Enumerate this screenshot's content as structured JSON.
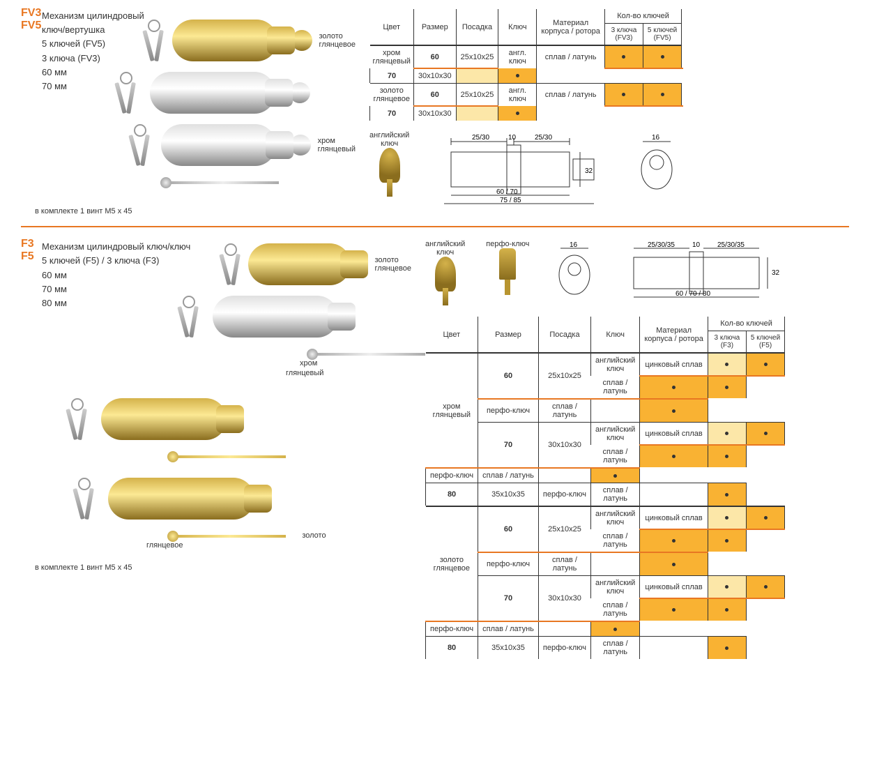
{
  "sec1": {
    "model1": "FV3",
    "model2": "FV5",
    "title": "Механизм цилиндровый",
    "sub": "ключ/вертушка",
    "k5": "5 ключей (FV5)",
    "k3": "3 ключа (FV3)",
    "s60": "60 мм",
    "s70": "70 мм",
    "note": "в комплекте 1 винт М5 х 45",
    "lbl_gold": "золото\nглянцевое",
    "lbl_chrome": "хром\nглянцевый",
    "lbl_engkey": "английский\nключ",
    "headers": {
      "color": "Цвет",
      "size": "Размер",
      "fit": "Посадка",
      "key": "Ключ",
      "material": "Материал\nкорпуса / ротора",
      "qty": "Кол-во ключей",
      "q3": "3 ключа\n(FV3)",
      "q5": "5 ключей\n(FV5)"
    },
    "rows": [
      {
        "color": "хром\nглянцевый",
        "size": "60",
        "fit": "25х10х25",
        "key": "англ. ключ",
        "mat": "сплав / латунь",
        "d3": true,
        "d5": true,
        "rowspan": 2,
        "first": true
      },
      {
        "size": "70",
        "fit": "30х10х30",
        "d3": false,
        "d5": true
      },
      {
        "color": "золото\nглянцевое",
        "size": "60",
        "fit": "25х10х25",
        "key": "англ. ключ",
        "mat": "сплав / латунь",
        "d3": true,
        "d5": true,
        "rowspan": 2,
        "first": true
      },
      {
        "size": "70",
        "fit": "30х10х30",
        "d3": false,
        "d5": true
      }
    ],
    "diag": {
      "d1": "25/30",
      "d2": "10",
      "d3": "25/30",
      "h": "32",
      "w1": "60 / 70",
      "w2": "75 / 85",
      "kw": "16"
    }
  },
  "sec2": {
    "model1": "F3",
    "model2": "F5",
    "title": "Механизм цилиндровый ключ/ключ",
    "k5": "5 ключей (F5) / 3 ключа (F3)",
    "s60": "60 мм",
    "s70": "70 мм",
    "s80": "80 мм",
    "note": "в комплекте 1 винт М5 х 45",
    "lbl_gold": "золото\nглянцевое",
    "lbl_chrome": "хром\nглянцевый",
    "lbl_engkey": "английский\nключ",
    "lbl_perfkey": "перфо-ключ",
    "headers": {
      "color": "Цвет",
      "size": "Размер",
      "fit": "Посадка",
      "key": "Ключ",
      "material": "Материал\nкорпуса / ротора",
      "qty": "Кол-во ключей",
      "q3": "3 ключа\n(F3)",
      "q5": "5 ключей\n(F5)"
    },
    "diag": {
      "d1": "25/30/35",
      "d2": "10",
      "d3": "25/30/35",
      "h": "32",
      "w1": "60 / 70 / 80",
      "kw": "16"
    },
    "groups": [
      {
        "color": "хром\nглянцевый",
        "blocks": [
          {
            "size": "60",
            "fit": "25х10х25",
            "rows": [
              {
                "key": "английский\nключ",
                "mat": "цинковый сплав",
                "d3": true,
                "d5": true,
                "light": true,
                "krs": 2
              },
              {
                "mat": "сплав / латунь",
                "d3": true,
                "d5": true
              },
              {
                "key": "перфо-ключ",
                "mat": "сплав / латунь",
                "d3": false,
                "d5": true
              }
            ]
          },
          {
            "size": "70",
            "fit": "30х10х30",
            "rows": [
              {
                "key": "английский\nключ",
                "mat": "цинковый сплав",
                "d3": true,
                "d5": true,
                "light": true,
                "krs": 2
              },
              {
                "mat": "сплав / латунь",
                "d3": true,
                "d5": true
              },
              {
                "key": "перфо-ключ",
                "mat": "сплав / латунь",
                "d3": false,
                "d5": true
              }
            ]
          },
          {
            "size": "80",
            "fit": "35х10х35",
            "rows": [
              {
                "key": "перфо-ключ",
                "mat": "сплав / латунь",
                "d3": false,
                "d5": true
              }
            ]
          }
        ]
      },
      {
        "color": "золото\nглянцевое",
        "blocks": [
          {
            "size": "60",
            "fit": "25х10х25",
            "rows": [
              {
                "key": "английский\nключ",
                "mat": "цинковый сплав",
                "d3": true,
                "d5": true,
                "light": true,
                "krs": 2
              },
              {
                "mat": "сплав / латунь",
                "d3": true,
                "d5": true
              },
              {
                "key": "перфо-ключ",
                "mat": "сплав / латунь",
                "d3": false,
                "d5": true
              }
            ]
          },
          {
            "size": "70",
            "fit": "30х10х30",
            "rows": [
              {
                "key": "английский\nключ",
                "mat": "цинковый сплав",
                "d3": true,
                "d5": true,
                "light": true,
                "krs": 2
              },
              {
                "mat": "сплав / латунь",
                "d3": true,
                "d5": true
              },
              {
                "key": "перфо-ключ",
                "mat": "сплав / латунь",
                "d3": false,
                "d5": true
              }
            ]
          },
          {
            "size": "80",
            "fit": "35х10х35",
            "rows": [
              {
                "key": "перфо-ключ",
                "mat": "сплав / латунь",
                "d3": false,
                "d5": true
              }
            ]
          }
        ]
      }
    ]
  }
}
